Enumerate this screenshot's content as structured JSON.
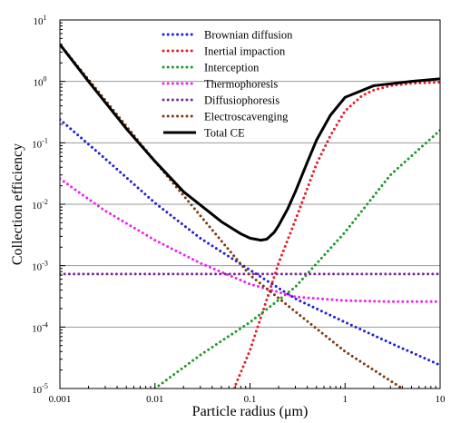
{
  "chart_data": {
    "type": "line",
    "xlabel": "Particle radius (μm)",
    "ylabel": "Collection efficiency",
    "xscale": "log",
    "yscale": "log",
    "xlim": [
      0.001,
      10
    ],
    "ylim": [
      1e-05,
      10
    ],
    "grid": "horizontal",
    "legend_position": "top-center",
    "x_ticks": [
      {
        "value": 0.001,
        "label": "0.001"
      },
      {
        "value": 0.01,
        "label": "0.01"
      },
      {
        "value": 0.1,
        "label": "0.1"
      },
      {
        "value": 1,
        "label": "1"
      },
      {
        "value": 10,
        "label": "10"
      }
    ],
    "y_ticks": [
      {
        "value": 1e-05,
        "base": "10",
        "exp": "-5"
      },
      {
        "value": 0.0001,
        "base": "10",
        "exp": "-4"
      },
      {
        "value": 0.001,
        "base": "10",
        "exp": "-3"
      },
      {
        "value": 0.01,
        "base": "10",
        "exp": "-2"
      },
      {
        "value": 0.1,
        "base": "10",
        "exp": "-1"
      },
      {
        "value": 1,
        "base": "10",
        "exp": "0"
      },
      {
        "value": 10,
        "base": "10",
        "exp": "1"
      }
    ],
    "series": [
      {
        "name": "Brownian diffusion",
        "color": "#1f1fd6",
        "style": "dotted",
        "x": [
          0.001,
          0.003,
          0.01,
          0.03,
          0.1,
          0.3,
          1,
          3,
          10
        ],
        "y": [
          0.24,
          0.055,
          0.0105,
          0.0028,
          0.00085,
          0.00029,
          0.00012,
          5.5e-05,
          2.4e-05
        ]
      },
      {
        "name": "Inertial impaction",
        "color": "#e0202a",
        "style": "dotted",
        "x": [
          0.068,
          0.1,
          0.15,
          0.2,
          0.3,
          0.5,
          0.7,
          1,
          1.5,
          2,
          3,
          5,
          10
        ],
        "y": [
          1e-05,
          4.2e-05,
          0.00028,
          0.0011,
          0.0055,
          0.045,
          0.13,
          0.33,
          0.58,
          0.72,
          0.85,
          0.93,
          0.97
        ]
      },
      {
        "name": "Interception",
        "color": "#1c9a2a",
        "style": "dotted",
        "x": [
          0.01,
          0.03,
          0.1,
          0.3,
          1,
          3,
          10
        ],
        "y": [
          1e-05,
          3.5e-05,
          0.00012,
          0.00045,
          0.0035,
          0.03,
          0.16
        ]
      },
      {
        "name": "Thermophoresis",
        "color": "#ee22ee",
        "style": "dotted",
        "x": [
          0.001,
          0.003,
          0.01,
          0.03,
          0.1,
          0.3,
          1,
          3,
          10
        ],
        "y": [
          0.026,
          0.0078,
          0.0026,
          0.0011,
          0.0005,
          0.00031,
          0.00027,
          0.00026,
          0.00026
        ]
      },
      {
        "name": "Diffusiophoresis",
        "color": "#7a2a9a",
        "style": "dotted",
        "x": [
          0.001,
          10
        ],
        "y": [
          0.00073,
          0.00073
        ]
      },
      {
        "name": "Electroscavenging",
        "color": "#7a3a12",
        "style": "dotted",
        "x": [
          0.001,
          0.01,
          0.1,
          1,
          4
        ],
        "y": [
          4.0,
          0.05,
          0.0007,
          4e-05,
          1e-05
        ]
      },
      {
        "name": "Total CE",
        "color": "#000000",
        "style": "solid",
        "x": [
          0.001,
          0.002,
          0.005,
          0.01,
          0.02,
          0.05,
          0.08,
          0.1,
          0.13,
          0.15,
          0.18,
          0.2,
          0.25,
          0.3,
          0.4,
          0.5,
          0.7,
          1,
          2,
          5,
          10
        ],
        "y": [
          4.0,
          1.0,
          0.17,
          0.05,
          0.016,
          0.0052,
          0.0033,
          0.0028,
          0.0026,
          0.0027,
          0.0035,
          0.0045,
          0.0085,
          0.016,
          0.048,
          0.11,
          0.28,
          0.55,
          0.85,
          1.0,
          1.1
        ]
      }
    ]
  }
}
